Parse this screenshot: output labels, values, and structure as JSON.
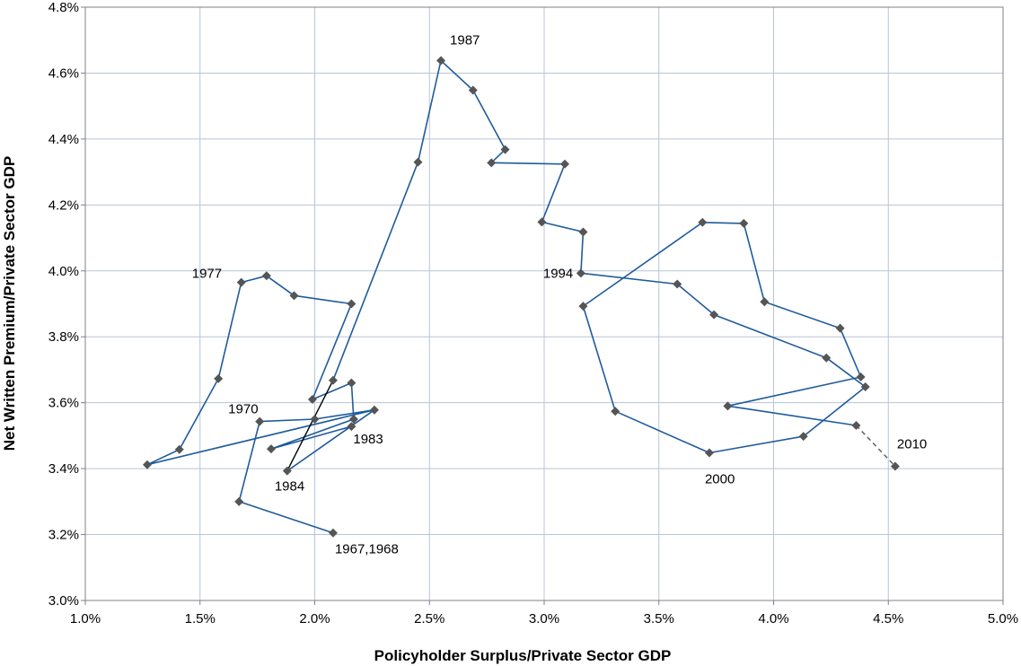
{
  "chart_data": {
    "type": "scatter",
    "title": "",
    "xlabel": "Policyholder Surplus/Private Sector GDP",
    "ylabel": "Net Written Premium/Private Sector GDP",
    "xlim": [
      1.0,
      5.0
    ],
    "ylim": [
      3.0,
      4.8
    ],
    "x_ticks": [
      "1.0%",
      "1.5%",
      "2.0%",
      "2.5%",
      "3.0%",
      "3.5%",
      "4.0%",
      "4.5%",
      "5.0%"
    ],
    "y_ticks": [
      "3.0%",
      "3.2%",
      "3.4%",
      "3.6%",
      "3.8%",
      "4.0%",
      "4.2%",
      "4.4%",
      "4.6%",
      "4.8%"
    ],
    "grid": true,
    "colors": {
      "line": "#1f5b9c",
      "link": "#000000",
      "marker": "#555555",
      "grid": "#b8c4d8"
    },
    "series": [
      {
        "style": "solid",
        "points": [
          [
            2.08,
            3.205
          ],
          [
            1.67,
            3.3
          ],
          [
            1.76,
            3.543
          ],
          [
            2.0,
            3.55
          ],
          [
            2.26,
            3.578
          ],
          [
            1.27,
            3.412
          ],
          [
            1.41,
            3.458
          ],
          [
            1.58,
            3.673
          ],
          [
            1.68,
            3.965
          ],
          [
            1.79,
            3.985
          ],
          [
            1.91,
            3.925
          ],
          [
            2.16,
            3.9
          ],
          [
            1.99,
            3.61
          ],
          [
            2.16,
            3.66
          ],
          [
            2.17,
            3.55
          ],
          [
            1.81,
            3.46
          ],
          [
            2.16,
            3.528
          ]
        ]
      },
      {
        "style": "solid",
        "points": [
          [
            1.88,
            3.393
          ],
          [
            2.26,
            3.578
          ]
        ]
      },
      {
        "style": "solid",
        "points": [
          [
            2.08,
            3.668
          ],
          [
            2.45,
            4.33
          ],
          [
            2.55,
            4.638
          ],
          [
            2.69,
            4.548
          ],
          [
            2.83,
            4.368
          ],
          [
            2.77,
            4.328
          ],
          [
            3.09,
            4.324
          ],
          [
            2.99,
            4.148
          ],
          [
            3.17,
            4.118
          ],
          [
            3.16,
            3.993
          ],
          [
            3.58,
            3.96
          ],
          [
            3.74,
            3.867
          ],
          [
            4.23,
            3.736
          ],
          [
            4.4,
            3.648
          ],
          [
            4.13,
            3.498
          ],
          [
            3.72,
            3.448
          ],
          [
            3.31,
            3.574
          ],
          [
            3.17,
            3.893
          ],
          [
            3.69,
            4.147
          ],
          [
            3.87,
            4.144
          ],
          [
            3.96,
            3.906
          ],
          [
            4.29,
            3.826
          ],
          [
            4.38,
            3.678
          ],
          [
            3.8,
            3.59
          ],
          [
            4.36,
            3.531
          ]
        ]
      },
      {
        "style": "solid-dark",
        "points": [
          [
            1.88,
            3.393
          ],
          [
            2.08,
            3.668
          ]
        ]
      },
      {
        "style": "dashed",
        "points": [
          [
            4.36,
            3.531
          ],
          [
            4.53,
            3.407
          ]
        ]
      }
    ],
    "annotations": [
      {
        "text": "1987",
        "x": 2.55,
        "y": 4.638,
        "dx": 10,
        "dy": -18
      },
      {
        "text": "1977",
        "x": 1.68,
        "y": 3.965,
        "dx": -55,
        "dy": -5
      },
      {
        "text": "1994",
        "x": 3.16,
        "y": 3.993,
        "dx": -42,
        "dy": 5
      },
      {
        "text": "1970",
        "x": 1.76,
        "y": 3.543,
        "dx": -35,
        "dy": -9
      },
      {
        "text": "1983",
        "x": 2.16,
        "y": 3.528,
        "dx": 2,
        "dy": 19
      },
      {
        "text": "1984",
        "x": 1.88,
        "y": 3.393,
        "dx": -14,
        "dy": 22
      },
      {
        "text": "1967,1968",
        "x": 2.08,
        "y": 3.205,
        "dx": 2,
        "dy": 23
      },
      {
        "text": "2000",
        "x": 3.72,
        "y": 3.448,
        "dx": -5,
        "dy": 34
      },
      {
        "text": "2010",
        "x": 4.53,
        "y": 3.407,
        "dx": 2,
        "dy": -20
      }
    ]
  }
}
